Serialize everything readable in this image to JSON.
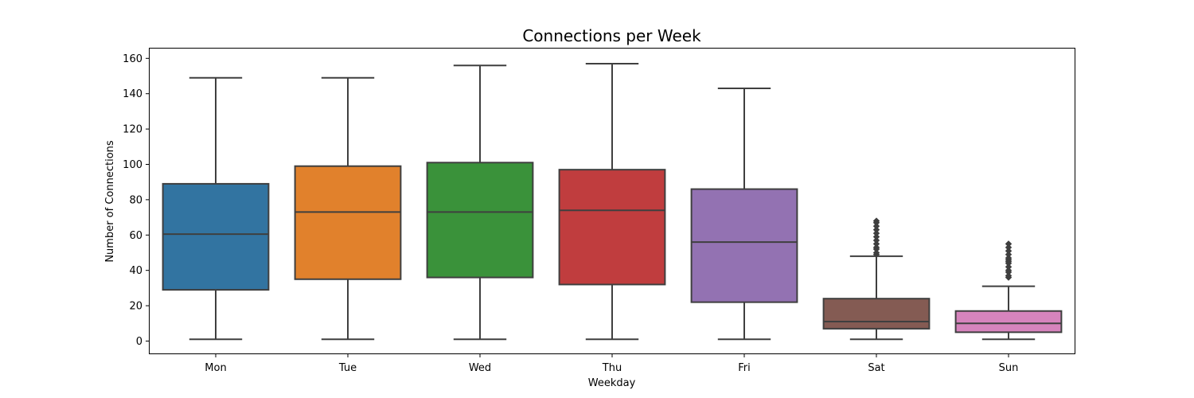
{
  "chart_data": {
    "type": "box",
    "title": "Connections per Week",
    "xlabel": "Weekday",
    "ylabel": "Number of Connections",
    "ylim": [
      -7,
      166
    ],
    "yticks": [
      0,
      20,
      40,
      60,
      80,
      100,
      120,
      140,
      160
    ],
    "grid": false,
    "categories": [
      "Mon",
      "Tue",
      "Wed",
      "Thu",
      "Fri",
      "Sat",
      "Sun"
    ],
    "boxes": [
      {
        "category": "Mon",
        "color": "#3274a1",
        "min": 1,
        "q1": 29,
        "median": 60.5,
        "q3": 89,
        "max": 149,
        "outliers": []
      },
      {
        "category": "Tue",
        "color": "#e1812c",
        "min": 1,
        "q1": 35,
        "median": 73,
        "q3": 99,
        "max": 149,
        "outliers": []
      },
      {
        "category": "Wed",
        "color": "#3a923a",
        "min": 1,
        "q1": 36,
        "median": 73,
        "q3": 101,
        "max": 156,
        "outliers": []
      },
      {
        "category": "Thu",
        "color": "#c03d3e",
        "min": 1,
        "q1": 32,
        "median": 74,
        "q3": 97,
        "max": 157,
        "outliers": []
      },
      {
        "category": "Fri",
        "color": "#9372b2",
        "min": 1,
        "q1": 22,
        "median": 56,
        "q3": 86,
        "max": 143,
        "outliers": []
      },
      {
        "category": "Sat",
        "color": "#845b53",
        "min": 1,
        "q1": 7,
        "median": 11,
        "q3": 24,
        "max": 48,
        "outliers": [
          49,
          50,
          52,
          53,
          55,
          57,
          59,
          61,
          63,
          65,
          67,
          68
        ]
      },
      {
        "category": "Sun",
        "color": "#d684bd",
        "min": 1,
        "q1": 5,
        "median": 10,
        "q3": 17,
        "max": 31,
        "outliers": [
          36,
          37,
          39,
          40,
          42,
          44,
          45,
          46,
          47,
          49,
          51,
          53,
          55
        ]
      }
    ]
  }
}
